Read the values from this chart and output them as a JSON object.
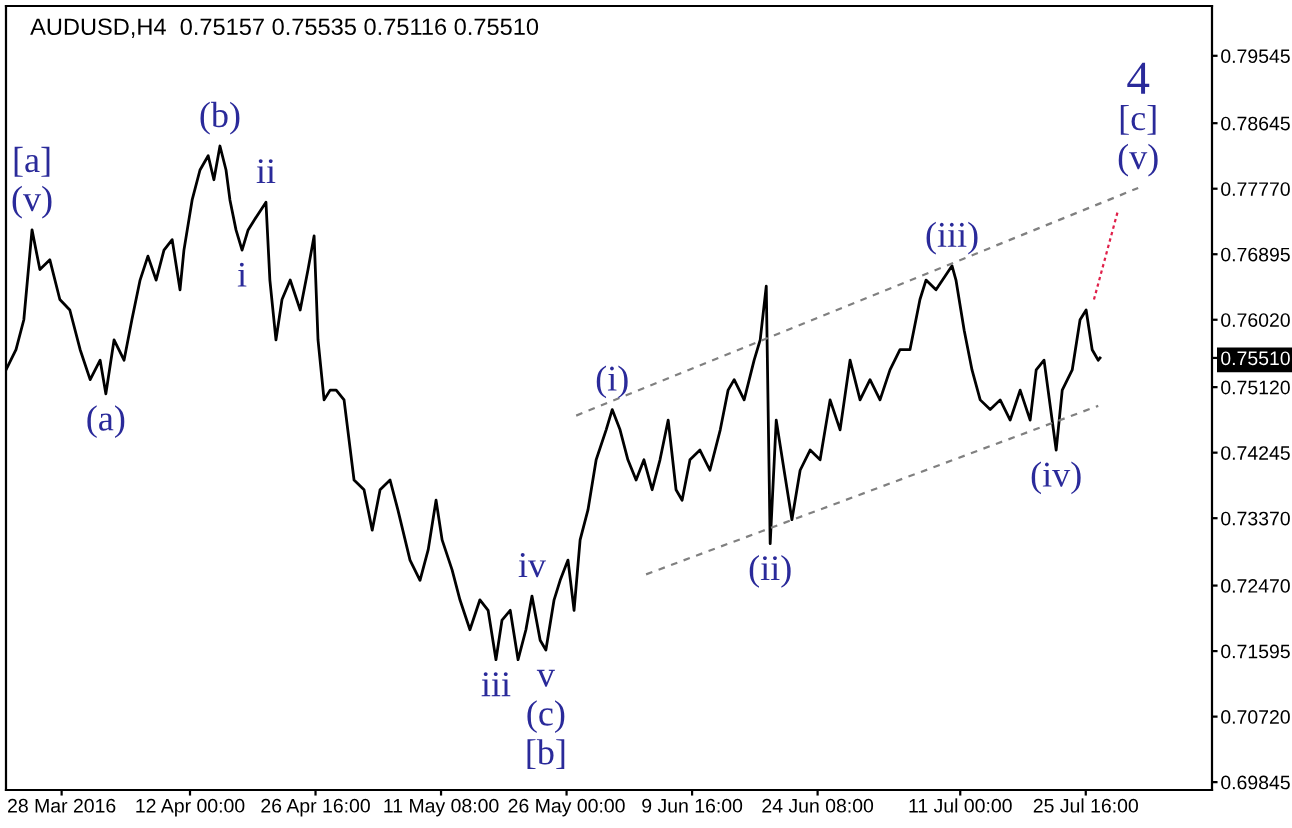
{
  "chart_data": {
    "type": "line",
    "title": "AUDUSD,H4  0.75157 0.75535 0.75116 0.75510",
    "xlim": [
      "2016-03-21T12:00",
      "2016-08-09T10:00"
    ],
    "ylim": [
      0.6974,
      0.8021
    ],
    "xticks": [
      {
        "value": "2016-03-28T00:00",
        "label": "28 Mar 2016"
      },
      {
        "value": "2016-04-12T00:00",
        "label": "12 Apr 00:00"
      },
      {
        "value": "2016-04-26T16:00",
        "label": "26 Apr 16:00"
      },
      {
        "value": "2016-05-11T08:00",
        "label": "11 May 08:00"
      },
      {
        "value": "2016-05-26T00:00",
        "label": "26 May 00:00"
      },
      {
        "value": "2016-06-09T16:00",
        "label": "9 Jun 16:00"
      },
      {
        "value": "2016-06-24T08:00",
        "label": "24 Jun 08:00"
      },
      {
        "value": "2016-07-11T00:00",
        "label": "11 Jul 00:00"
      },
      {
        "value": "2016-07-25T16:00",
        "label": "25 Jul 16:00"
      }
    ],
    "yticks": [
      0.79545,
      0.78645,
      {
        "value": 0.7777,
        "label": "0.77770"
      },
      0.76895,
      {
        "value": 0.7602,
        "label": "0.76020"
      },
      {
        "value": 0.7551,
        "label": "0.75510"
      },
      {
        "value": 0.7512,
        "label": "0.75120"
      },
      0.74245,
      {
        "value": 0.7337,
        "label": "0.73370"
      },
      {
        "value": 0.7247,
        "label": "0.72470"
      },
      0.71595,
      {
        "value": 0.7072,
        "label": "0.70720"
      },
      0.69845
    ],
    "grid": false,
    "legend": false,
    "series": [
      {
        "color": "#000000",
        "line_style": "solid",
        "x": [
          "2016-03-21T12:00",
          "2016-03-22T16:00",
          "2016-03-23T14:00",
          "2016-03-24T13:00",
          "2016-03-25T11:00",
          "2016-03-26T15:00",
          "2016-03-27T19:00",
          "2016-03-28T23:00",
          "2016-03-30T04:00",
          "2016-03-31T08:00",
          "2016-04-01T12:00",
          "2016-04-02T04:00",
          "2016-04-03T03:00",
          "2016-04-04T07:00",
          "2016-04-05T05:00",
          "2016-04-06T04:00",
          "2016-04-07T02:00",
          "2016-04-08T01:00",
          "2016-04-08T23:00",
          "2016-04-09T22:00",
          "2016-04-10T20:00",
          "2016-04-11T07:00",
          "2016-04-12T06:00",
          "2016-04-13T04:00",
          "2016-04-14T03:00",
          "2016-04-14T19:00",
          "2016-04-15T12:00",
          "2016-04-16T05:00",
          "2016-04-16T16:00",
          "2016-04-17T09:00",
          "2016-04-18T02:00",
          "2016-04-18T19:00",
          "2016-04-19T12:00",
          "2016-04-20T21:00",
          "2016-04-21T08:00",
          "2016-04-22T01:00",
          "2016-04-22T18:00",
          "2016-04-23T17:00",
          "2016-04-24T21:00",
          "2016-04-25T19:00",
          "2016-04-26T12:00",
          "2016-04-26T23:00",
          "2016-04-27T16:00",
          "2016-04-28T09:00",
          "2016-04-29T02:00",
          "2016-04-30T00:00",
          "2016-05-01T04:00",
          "2016-05-02T08:00",
          "2016-05-03T07:00",
          "2016-05-04T05:00",
          "2016-05-05T09:00",
          "2016-05-06T07:00",
          "2016-05-07T17:00",
          "2016-05-08T21:00",
          "2016-05-09T20:00",
          "2016-05-10T18:00",
          "2016-05-11T11:00",
          "2016-05-12T15:00",
          "2016-05-13T13:00",
          "2016-05-14T17:00",
          "2016-05-15T21:00",
          "2016-05-16T20:00",
          "2016-05-17T18:00",
          "2016-05-18T11:00",
          "2016-05-19T10:00",
          "2016-05-20T08:00",
          "2016-05-21T06:00",
          "2016-05-21T23:00",
          "2016-05-22T22:00",
          "2016-05-23T14:00",
          "2016-05-24T13:00",
          "2016-05-25T06:00",
          "2016-05-26T04:00",
          "2016-05-26T21:00",
          "2016-05-27T14:00",
          "2016-05-28T12:00",
          "2016-05-29T11:00",
          "2016-05-30T15:00",
          "2016-05-31T08:00",
          "2016-06-01T06:00",
          "2016-06-02T04:00",
          "2016-06-03T03:00",
          "2016-06-04T01:00",
          "2016-06-05T00:00",
          "2016-06-05T22:00",
          "2016-06-06T21:00",
          "2016-06-07T19:00",
          "2016-06-08T12:00",
          "2016-06-09T10:00",
          "2016-06-10T14:00",
          "2016-06-11T18:00",
          "2016-06-12T23:00",
          "2016-06-13T21:00",
          "2016-06-14T14:00",
          "2016-06-15T18:00",
          "2016-06-16T22:00",
          "2016-06-17T15:00",
          "2016-06-18T08:00",
          "2016-06-18T19:00",
          "2016-06-19T12:00",
          "2016-06-20T10:00",
          "2016-06-21T08:00",
          "2016-06-22T07:00",
          "2016-06-23T11:00",
          "2016-06-24T15:00",
          "2016-06-25T19:00",
          "2016-06-26T23:00",
          "2016-06-28T03:00",
          "2016-06-29T07:00",
          "2016-06-30T11:00",
          "2016-07-01T15:00",
          "2016-07-02T19:00",
          "2016-07-03T23:00",
          "2016-07-05T03:00",
          "2016-07-06T07:00",
          "2016-07-07T00:00",
          "2016-07-08T04:00",
          "2016-07-10T01:00",
          "2016-07-10T12:00",
          "2016-07-11T11:00",
          "2016-07-12T09:00",
          "2016-07-13T08:00",
          "2016-07-14T12:00",
          "2016-07-15T16:00",
          "2016-07-16T20:00",
          "2016-07-18T00:00",
          "2016-07-19T04:00",
          "2016-07-19T21:00",
          "2016-07-20T19:00",
          "2016-07-22T05:00",
          "2016-07-22T22:00",
          "2016-07-24T02:00",
          "2016-07-25T00:00",
          "2016-07-25T17:00",
          "2016-07-26T10:00",
          "2016-07-27T03:00",
          "2016-07-27T08:00"
        ],
        "values": [
          0.7535,
          0.7562,
          0.7602,
          0.7722,
          0.7669,
          0.7682,
          0.7629,
          0.7615,
          0.7562,
          0.7522,
          0.7548,
          0.7503,
          0.7575,
          0.7548,
          0.7602,
          0.7655,
          0.7687,
          0.7655,
          0.7695,
          0.7709,
          0.7642,
          0.7695,
          0.7762,
          0.7802,
          0.7821,
          0.7789,
          0.7834,
          0.7802,
          0.7762,
          0.7722,
          0.7695,
          0.7722,
          0.7735,
          0.7759,
          0.7655,
          0.7575,
          0.7629,
          0.7655,
          0.7615,
          0.7669,
          0.7714,
          0.7575,
          0.7495,
          0.7508,
          0.7508,
          0.7495,
          0.7388,
          0.7375,
          0.7321,
          0.7375,
          0.7388,
          0.7348,
          0.7281,
          0.7254,
          0.7295,
          0.7361,
          0.7308,
          0.7268,
          0.7228,
          0.7188,
          0.7228,
          0.7214,
          0.7148,
          0.7201,
          0.7214,
          0.7148,
          0.7188,
          0.7233,
          0.7174,
          0.7161,
          0.7228,
          0.7254,
          0.7281,
          0.7214,
          0.7308,
          0.7348,
          0.7415,
          0.7455,
          0.7482,
          0.7455,
          0.7415,
          0.7388,
          0.7415,
          0.7375,
          0.7415,
          0.7468,
          0.7375,
          0.7361,
          0.7415,
          0.7428,
          0.7401,
          0.7455,
          0.7508,
          0.7522,
          0.7495,
          0.7548,
          0.7575,
          0.7647,
          0.7303,
          0.7468,
          0.7401,
          0.7335,
          0.7401,
          0.7428,
          0.7415,
          0.7495,
          0.7455,
          0.7548,
          0.7495,
          0.7522,
          0.7495,
          0.7535,
          0.7562,
          0.7562,
          0.7629,
          0.7655,
          0.7642,
          0.7674,
          0.7655,
          0.7588,
          0.7535,
          0.7495,
          0.7482,
          0.7495,
          0.7468,
          0.7508,
          0.7468,
          0.7535,
          0.7548,
          0.7428,
          0.7508,
          0.7535,
          0.7602,
          0.7615,
          0.7562,
          0.7548,
          0.7551
        ]
      },
      {
        "color": "#808080",
        "line_style": "dashed",
        "x": [
          "2016-05-27T03:00",
          "2016-07-31T19:00"
        ],
        "values": [
          0.7474,
          0.7778
        ]
      },
      {
        "color": "#808080",
        "line_style": "dashed",
        "x": [
          "2016-06-04T07:00",
          "2016-07-27T03:00"
        ],
        "values": [
          0.7262,
          0.7487
        ]
      },
      {
        "color": "#e0204a",
        "line_style": "dotted",
        "x": [
          "2016-07-26T15:00",
          "2016-07-29T11:00"
        ],
        "values": [
          0.7629,
          0.7749
        ]
      }
    ],
    "annotations": [
      {
        "text": "(v)",
        "x": "2016-03-24T13:00",
        "y": 0.7722
      },
      {
        "text": "[a]",
        "x": "2016-03-24T13:00",
        "y": 0.7722
      },
      {
        "text": "(a)",
        "x": "2016-04-02T04:00",
        "y": 0.7503
      },
      {
        "text": "(b)",
        "x": "2016-04-15T12:00",
        "y": 0.7834
      },
      {
        "text": "ii",
        "x": "2016-04-20T21:00",
        "y": 0.7759
      },
      {
        "text": "i",
        "x": "2016-04-18T02:00",
        "y": 0.7695
      },
      {
        "text": "(i)",
        "x": "2016-05-31T08:00",
        "y": 0.7482
      },
      {
        "text": "iv",
        "x": "2016-05-21T23:00",
        "y": 0.7233
      },
      {
        "text": "iii",
        "x": "2016-05-17T18:00",
        "y": 0.7148
      },
      {
        "text": "v",
        "x": "2016-05-23T14:00",
        "y": 0.7161
      },
      {
        "text": "(c)",
        "x": "2016-05-23T14:00",
        "y": 0.7161
      },
      {
        "text": "[b]",
        "x": "2016-05-23T14:00",
        "y": 0.7161
      },
      {
        "text": "(ii)",
        "x": "2016-06-18T19:00",
        "y": 0.7303
      },
      {
        "text": "(iii)",
        "x": "2016-07-10T01:00",
        "y": 0.7674
      },
      {
        "text": "(iv)",
        "x": "2016-07-22T05:00",
        "y": 0.7428
      },
      {
        "text": "(v)",
        "x": "2016-07-31T19:00",
        "y": 0.7778
      },
      {
        "text": "[c]",
        "x": "2016-07-31T19:00",
        "y": 0.7778
      },
      {
        "text": "4",
        "x": "2016-07-31T19:00",
        "y": 0.7778
      }
    ]
  }
}
